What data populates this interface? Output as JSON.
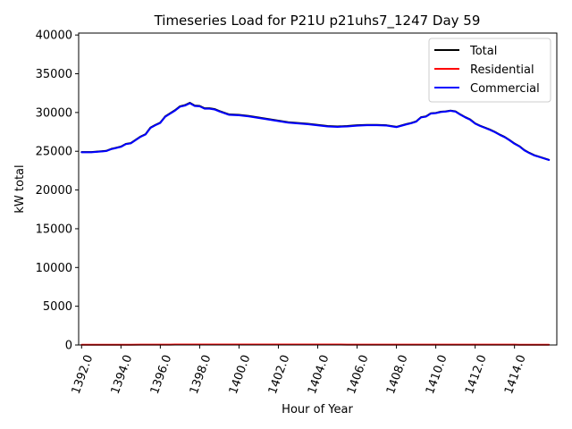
{
  "chart_data": {
    "type": "line",
    "title": "Timeseries Load for P21U p21uhs7_1247  Day 59",
    "xlabel": "Hour of Year",
    "ylabel": "kW total",
    "xlim": [
      1391.85,
      1416.15
    ],
    "ylim": [
      0,
      40250
    ],
    "xticks": [
      1392,
      1394,
      1396,
      1398,
      1400,
      1402,
      1404,
      1406,
      1408,
      1410,
      1412,
      1414
    ],
    "xtick_labels": [
      "1392.0",
      "1394.0",
      "1396.0",
      "1398.0",
      "1400.0",
      "1402.0",
      "1404.0",
      "1406.0",
      "1408.0",
      "1410.0",
      "1412.0",
      "1414.0"
    ],
    "yticks": [
      0,
      5000,
      10000,
      15000,
      20000,
      25000,
      30000,
      35000,
      40000
    ],
    "ytick_labels": [
      "0",
      "5000",
      "10000",
      "15000",
      "20000",
      "25000",
      "30000",
      "35000",
      "40000"
    ],
    "legend_position": "top-right",
    "x": [
      1392.0,
      1392.5,
      1393.0,
      1393.25,
      1393.5,
      1393.75,
      1394.0,
      1394.25,
      1394.5,
      1395.0,
      1395.25,
      1395.5,
      1395.75,
      1396.0,
      1396.25,
      1396.5,
      1396.75,
      1397.0,
      1397.25,
      1397.5,
      1397.75,
      1398.0,
      1398.25,
      1398.5,
      1398.75,
      1399.0,
      1399.5,
      1400.0,
      1400.5,
      1401.0,
      1401.5,
      1402.0,
      1402.5,
      1403.0,
      1403.5,
      1404.0,
      1404.5,
      1405.0,
      1405.5,
      1406.0,
      1406.5,
      1407.0,
      1407.5,
      1408.0,
      1408.5,
      1408.75,
      1409.0,
      1409.25,
      1409.5,
      1409.75,
      1410.0,
      1410.25,
      1410.5,
      1410.75,
      1411.0,
      1411.25,
      1411.5,
      1411.75,
      1412.0,
      1412.25,
      1412.5,
      1412.75,
      1413.0,
      1413.25,
      1413.5,
      1413.75,
      1414.0,
      1414.25,
      1414.5,
      1414.75,
      1415.0,
      1415.25,
      1415.5,
      1415.75
    ],
    "series": [
      {
        "name": "Total",
        "color": "#000000",
        "values": [
          24900,
          24900,
          25000,
          25050,
          25300,
          25450,
          25600,
          25950,
          26050,
          26900,
          27200,
          28050,
          28400,
          28700,
          29500,
          29900,
          30300,
          30800,
          30950,
          31250,
          30900,
          30850,
          30550,
          30550,
          30450,
          30200,
          29750,
          29700,
          29550,
          29350,
          29150,
          28950,
          28750,
          28650,
          28550,
          28400,
          28250,
          28200,
          28250,
          28350,
          28400,
          28400,
          28350,
          28150,
          28500,
          28650,
          28850,
          29400,
          29500,
          29900,
          29950,
          30100,
          30150,
          30250,
          30150,
          29750,
          29400,
          29100,
          28600,
          28300,
          28050,
          27800,
          27500,
          27150,
          26850,
          26450,
          26000,
          25650,
          25150,
          24800,
          24500,
          24300,
          24100,
          23900
        ]
      },
      {
        "name": "Residential",
        "color": "#ff0000",
        "values": [
          30,
          30,
          30,
          30,
          35,
          35,
          35,
          35,
          35,
          40,
          40,
          45,
          45,
          45,
          50,
          50,
          55,
          55,
          60,
          60,
          60,
          60,
          60,
          60,
          60,
          60,
          60,
          60,
          60,
          60,
          60,
          65,
          65,
          60,
          60,
          60,
          55,
          55,
          50,
          50,
          45,
          45,
          40,
          40,
          40,
          40,
          40,
          40,
          40,
          40,
          40,
          40,
          40,
          40,
          40,
          40,
          40,
          40,
          40,
          40,
          40,
          40,
          40,
          40,
          40,
          40,
          40,
          35,
          35,
          35,
          35,
          35,
          30,
          30
        ]
      },
      {
        "name": "Commercial",
        "color": "#0000ff",
        "values": [
          24870,
          24870,
          24970,
          25020,
          25265,
          25415,
          25565,
          25915,
          26015,
          26860,
          27160,
          28005,
          28355,
          28655,
          29450,
          29850,
          30245,
          30745,
          30890,
          31190,
          30840,
          30790,
          30490,
          30490,
          30390,
          30140,
          29690,
          29640,
          29490,
          29290,
          29090,
          28885,
          28685,
          28590,
          28490,
          28340,
          28195,
          28145,
          28200,
          28300,
          28355,
          28355,
          28310,
          28110,
          28460,
          28610,
          28810,
          29360,
          29460,
          29860,
          29910,
          30060,
          30110,
          30210,
          30110,
          29710,
          29360,
          29060,
          28560,
          28260,
          28010,
          27760,
          27460,
          27110,
          26810,
          26410,
          25960,
          25615,
          25115,
          24765,
          24465,
          24265,
          24070,
          23870
        ]
      }
    ]
  }
}
